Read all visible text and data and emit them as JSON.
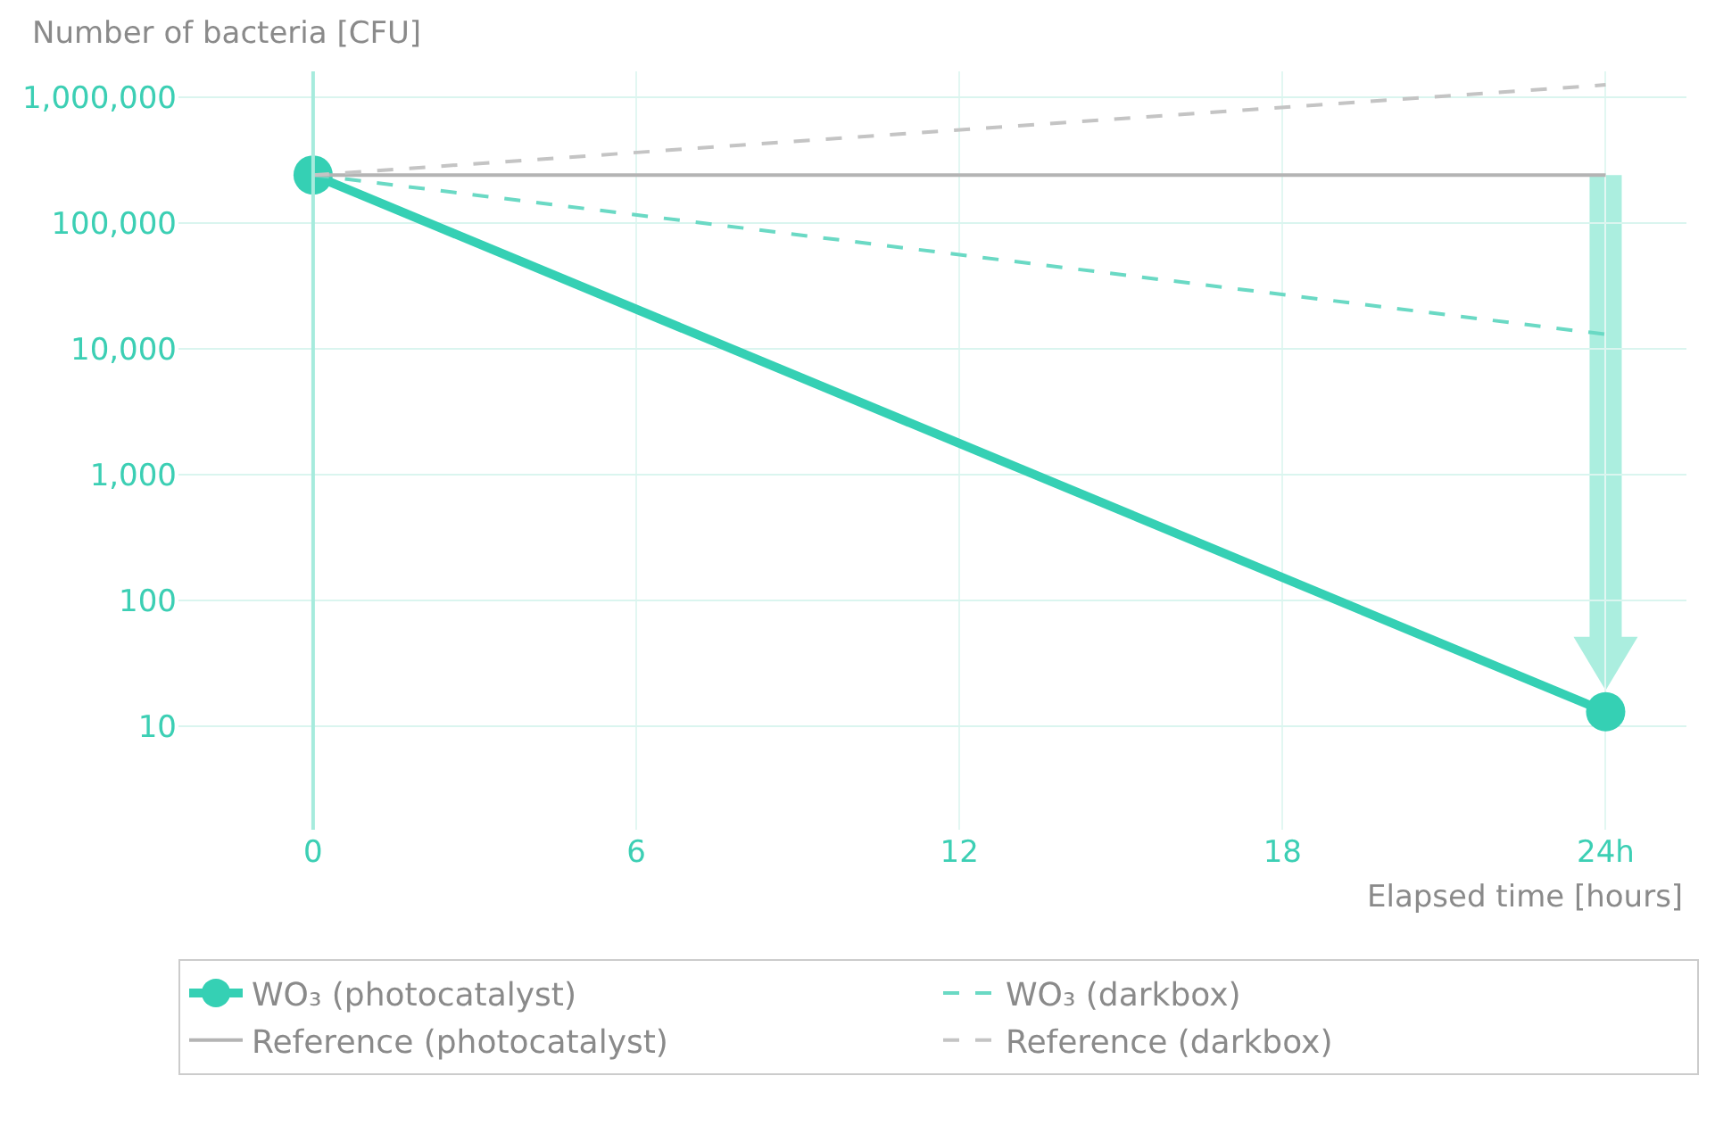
{
  "chart_data": {
    "type": "line",
    "xlabel": "Elapsed time [hours]",
    "ylabel": "Number of bacteria [CFU]",
    "x": [
      0,
      24
    ],
    "series": [
      {
        "name": "WO₃ (photocatalyst)",
        "color": "#35d0b4",
        "values": [
          240000,
          13
        ],
        "marker": "circle",
        "line_style": "solid"
      },
      {
        "name": "WO₃ (darkbox)",
        "color": "#6ad9c4",
        "values": [
          240000,
          13000
        ],
        "marker": "none",
        "line_style": "dashed"
      },
      {
        "name": "Reference (photocatalyst)",
        "color": "#b4b4b4",
        "values": [
          240000,
          240000
        ],
        "marker": "none",
        "line_style": "solid"
      },
      {
        "name": "Reference (darkbox)",
        "color": "#c4c4c4",
        "values": [
          240000,
          1250000
        ],
        "marker": "none",
        "line_style": "dashed"
      }
    ],
    "log": "y",
    "xlim": [
      -2.5,
      25.5
    ],
    "xticks": [
      0,
      6,
      12,
      18,
      {
        "value": 24,
        "label": "24h"
      }
    ],
    "ylim": [
      1.5,
      1600000
    ],
    "yticks": [
      {
        "value": 10,
        "label": "10"
      },
      {
        "value": 100,
        "label": "100"
      },
      {
        "value": 1000,
        "label": "1,000"
      },
      {
        "value": 10000,
        "label": "10,000"
      },
      {
        "value": 100000,
        "label": "100,000"
      },
      {
        "value": 1000000,
        "label": "1,000,000"
      }
    ],
    "ref_lines": [
      {
        "axis": "x",
        "value": 0,
        "color": "#a6ebdd"
      }
    ],
    "grid": true,
    "legend": "bottom"
  }
}
